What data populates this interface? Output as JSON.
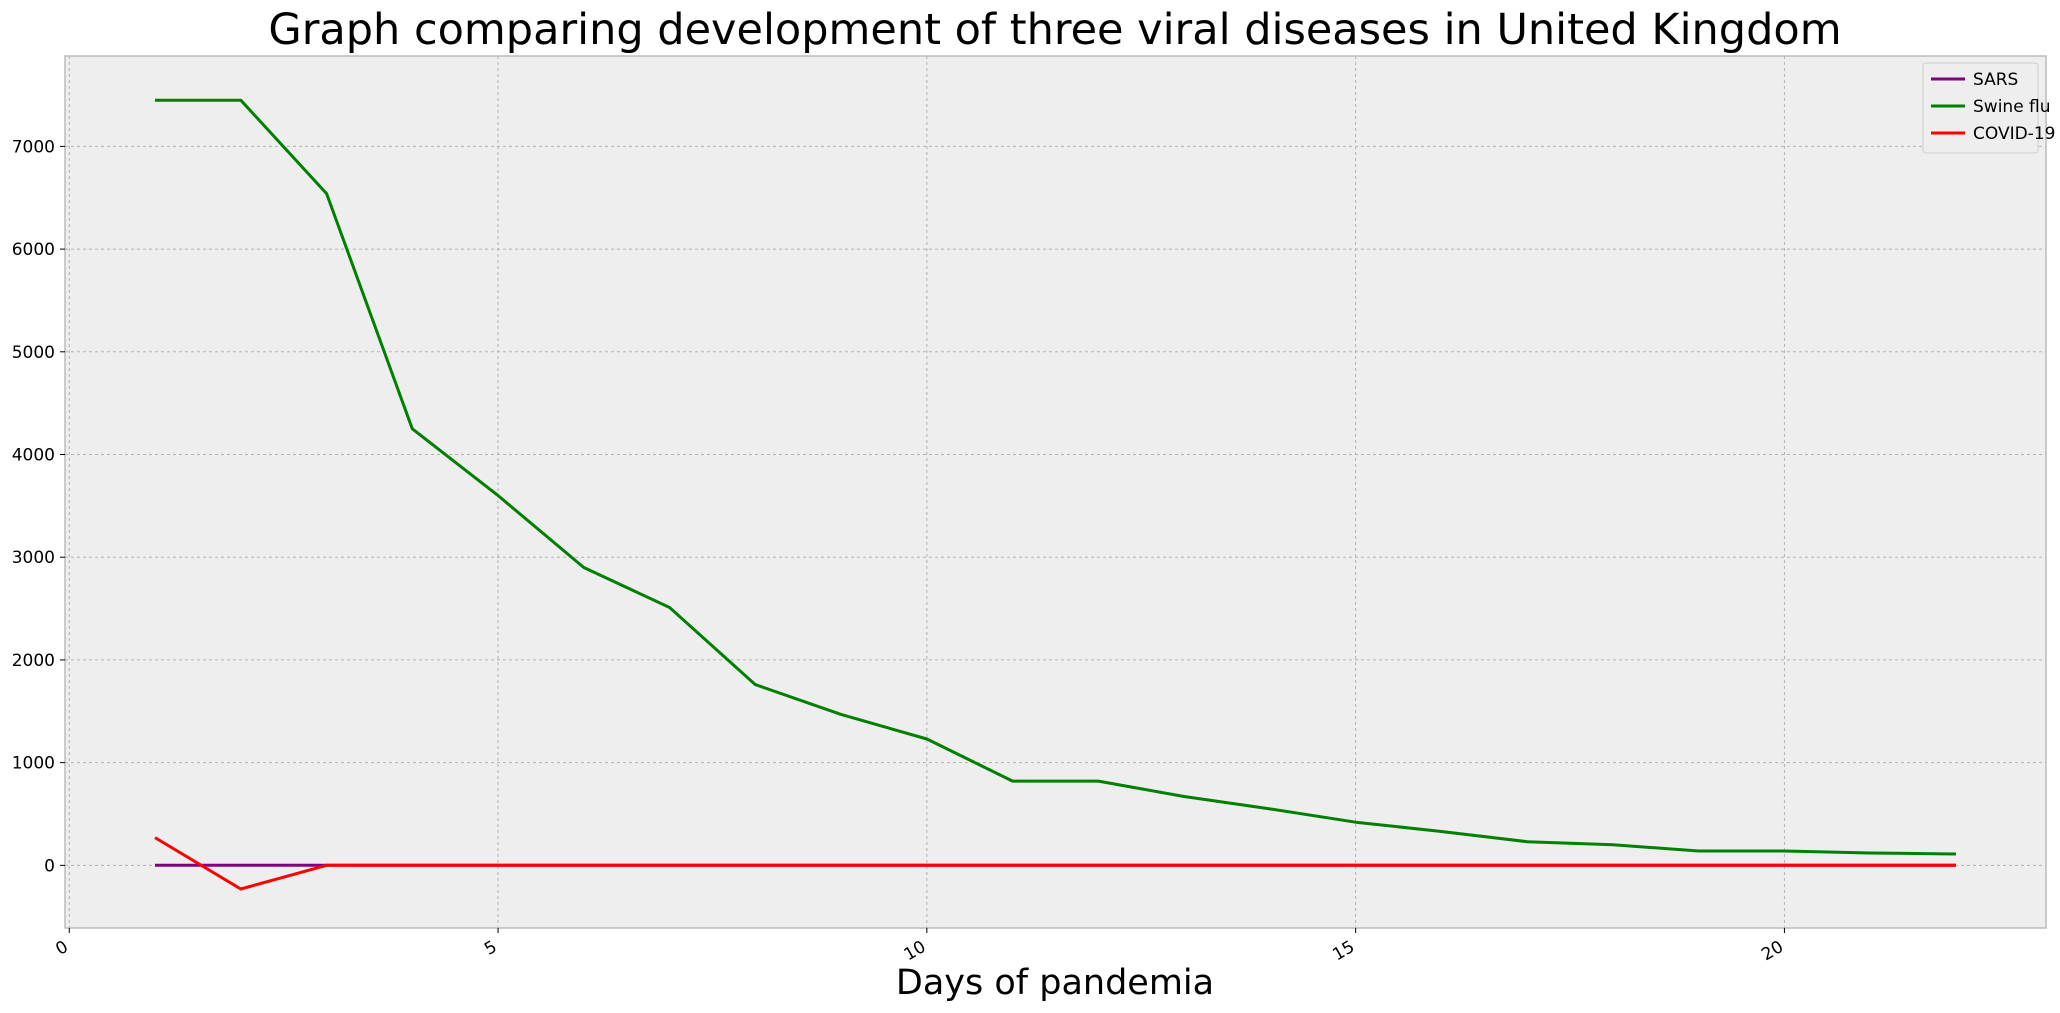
{
  "chart_data": {
    "type": "line",
    "title": "Graph comparing development of three viral diseases in United Kingdom",
    "xlabel": "Days of pandemia",
    "ylabel": "",
    "xlim": [
      -0.05,
      23.05
    ],
    "ylim": [
      -610,
      7880
    ],
    "xticks": [
      0,
      5,
      10,
      15,
      20
    ],
    "yticks": [
      0,
      1000,
      2000,
      3000,
      4000,
      5000,
      6000,
      7000
    ],
    "grid": true,
    "legend_position": "top-right",
    "x": [
      1,
      2,
      3,
      4,
      5,
      6,
      7,
      8,
      9,
      10,
      11,
      12,
      13,
      14,
      15,
      16,
      17,
      18,
      19,
      20,
      21,
      22
    ],
    "series": [
      {
        "name": "SARS",
        "color": "#800080",
        "values": [
          0,
          0,
          0,
          0,
          0,
          0,
          0,
          0,
          0,
          0,
          0,
          0,
          0,
          0,
          0,
          0,
          0,
          0,
          0,
          0,
          0,
          0
        ]
      },
      {
        "name": "Swine flu",
        "color": "#008000",
        "values": [
          7450,
          7450,
          6540,
          4250,
          3600,
          2900,
          2510,
          1760,
          1470,
          1230,
          820,
          820,
          670,
          550,
          420,
          330,
          230,
          200,
          140,
          140,
          120,
          110
        ]
      },
      {
        "name": "COVID-19",
        "color": "#ff0000",
        "values": [
          270,
          -230,
          0,
          0,
          0,
          0,
          0,
          0,
          0,
          0,
          0,
          0,
          0,
          0,
          0,
          0,
          0,
          0,
          0,
          0,
          0,
          0
        ]
      }
    ]
  }
}
